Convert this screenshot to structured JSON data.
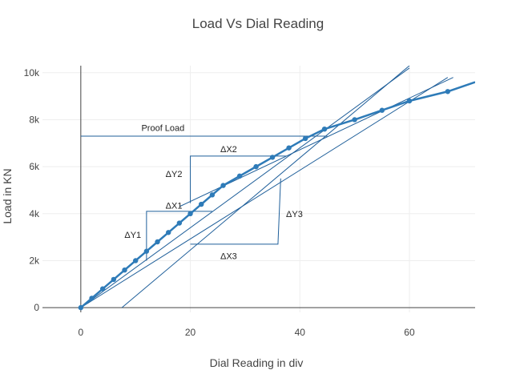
{
  "chart_data": {
    "type": "line",
    "title": "Load Vs Dial Reading",
    "xlabel": "Dial Reading in div",
    "ylabel": "Load in KN",
    "xlim": [
      -7,
      72
    ],
    "ylim": [
      -200,
      10300
    ],
    "grid": true,
    "legend": "none",
    "x_ticks": [
      0,
      20,
      40,
      60
    ],
    "x_tick_labels": [
      "0",
      "20",
      "40",
      "60"
    ],
    "y_ticks": [
      0,
      2000,
      4000,
      6000,
      8000,
      10000
    ],
    "y_tick_labels": [
      "0",
      "2k",
      "4k",
      "6k",
      "8k",
      "10k"
    ],
    "series": [
      {
        "x": [
          0,
          2,
          4,
          6,
          8,
          10,
          12,
          14,
          16,
          18,
          20,
          22,
          24,
          26,
          29,
          32,
          35,
          38,
          41,
          44.5,
          50,
          55,
          60,
          67,
          72
        ],
        "y": [
          0,
          400,
          800,
          1200,
          1600,
          2000,
          2400,
          2800,
          3200,
          3600,
          4000,
          4400,
          4800,
          5200,
          5600,
          6000,
          6400,
          6800,
          7200,
          7600,
          8000,
          8400,
          8800,
          9200,
          9600
        ],
        "markers": [
          true,
          true,
          true,
          true,
          true,
          true,
          true,
          true,
          true,
          true,
          true,
          true,
          true,
          true,
          true,
          true,
          true,
          true,
          true,
          true,
          true,
          true,
          true,
          true,
          false
        ],
        "color": "#2e7bb8"
      }
    ],
    "reference_lines": [
      {
        "x": [
          0,
          60
        ],
        "y": [
          0,
          10200
        ]
      },
      {
        "x": [
          0,
          67
        ],
        "y": [
          0,
          9800
        ]
      },
      {
        "x": [
          7.5,
          60
        ],
        "y": [
          0,
          10300
        ]
      },
      {
        "x": [
          18,
          68
        ],
        "y": [
          4300,
          9800
        ]
      },
      {
        "x": [
          0,
          45
        ],
        "y": [
          7300,
          7300
        ]
      }
    ],
    "annotation_shapes": [
      {
        "x": [
          12,
          12,
          24
        ],
        "y": [
          2000,
          4100,
          4100
        ]
      },
      {
        "x": [
          20,
          20,
          37.5
        ],
        "y": [
          4450,
          6450,
          6450
        ]
      },
      {
        "x": [
          20,
          36,
          36.5
        ],
        "y": [
          2700,
          2700,
          5500
        ]
      }
    ],
    "annotations": [
      {
        "text": "Proof Load",
        "x": 15,
        "y": 7650
      },
      {
        "text": "ΔX2",
        "x": 27,
        "y": 6750
      },
      {
        "text": "ΔY2",
        "x": 17,
        "y": 5700
      },
      {
        "text": "ΔX1",
        "x": 17,
        "y": 4350
      },
      {
        "text": "ΔY1",
        "x": 9.5,
        "y": 3100
      },
      {
        "text": "ΔY3",
        "x": 39,
        "y": 4000
      },
      {
        "text": "ΔX3",
        "x": 27,
        "y": 2200
      }
    ],
    "line_color": "#1f5f9a"
  }
}
